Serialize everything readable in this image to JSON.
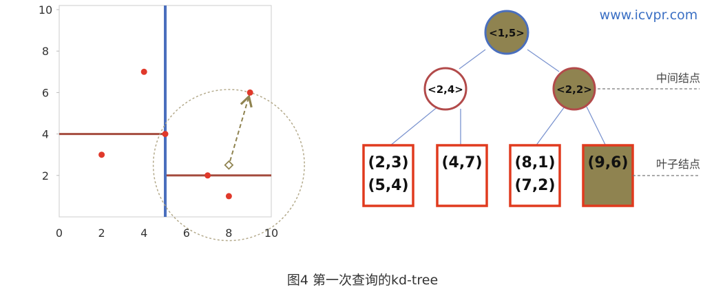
{
  "watermark": "www.icvpr.com",
  "caption": "图4 第一次查询的kd-tree",
  "colors": {
    "split_vertical": "#4a6fbd",
    "split_horizontal": "#a44b3e",
    "point": "#e0392b",
    "node_fill_visited": "#8f8350",
    "node_border_blue": "#4a6fbd",
    "node_border_red": "#b24a4a",
    "leaf_border": "#e03a1e",
    "search_circle": "#b3a98a",
    "search_arrow": "#8f8350",
    "tree_edge": "#7a93cf",
    "watermark": "#3a6fc4"
  },
  "plot": {
    "x_ticks": [
      "0",
      "2",
      "4",
      "6",
      "8",
      "10"
    ],
    "y_ticks": [
      "2",
      "4",
      "6",
      "8",
      "10"
    ],
    "xlim": [
      0,
      10
    ],
    "ylim": [
      0,
      10
    ],
    "points": [
      {
        "x": 2,
        "y": 3
      },
      {
        "x": 4,
        "y": 7
      },
      {
        "x": 5,
        "y": 4
      },
      {
        "x": 7,
        "y": 2
      },
      {
        "x": 8,
        "y": 1
      },
      {
        "x": 9,
        "y": 6
      }
    ],
    "vertical_split": {
      "x": 5,
      "from_y": 0,
      "to_y": 10
    },
    "horizontal_splits": [
      {
        "y": 4,
        "from_x": 0,
        "to_x": 5
      },
      {
        "y": 2,
        "from_x": 5,
        "to_x": 10
      }
    ],
    "query_point": {
      "x": 8,
      "y": 2.5
    },
    "nearest_point": {
      "x": 9,
      "y": 6
    }
  },
  "tree": {
    "root": {
      "label": "<1,5>"
    },
    "left": {
      "label": "<2,4>"
    },
    "right": {
      "label": "<2,2>"
    },
    "leaves": [
      {
        "lines": [
          "(2,3)",
          "(5,4)"
        ],
        "filled": false
      },
      {
        "lines": [
          "(4,7)"
        ],
        "filled": false
      },
      {
        "lines": [
          "(8,1)",
          "(7,2)"
        ],
        "filled": false
      },
      {
        "lines": [
          "(9,6)"
        ],
        "filled": true
      }
    ],
    "internal_label": "中间结点",
    "leaf_label": "叶子结点"
  }
}
